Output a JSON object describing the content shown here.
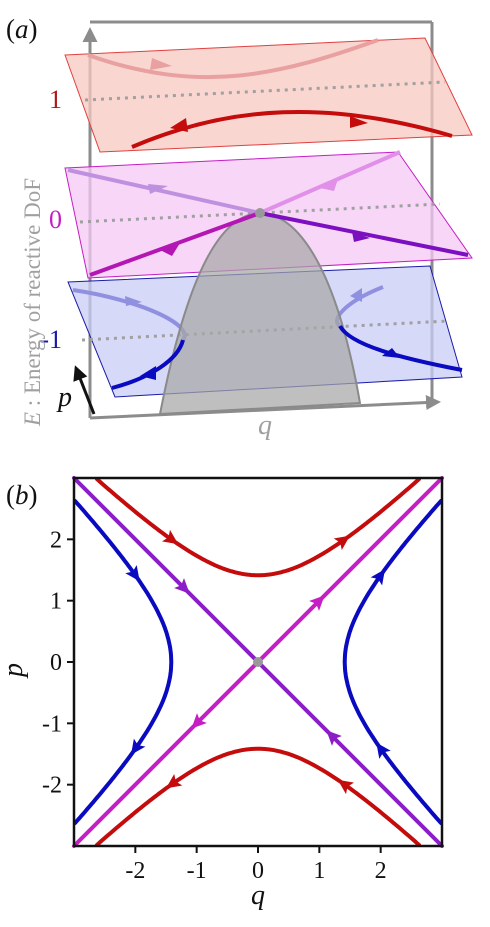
{
  "panel_a": {
    "panel_label": {
      "paren_open": "(",
      "letter": "a",
      "paren_close": ")"
    },
    "y_axis_label": {
      "symbol": "E",
      "rest": " : Energy of reactive DoF"
    },
    "x_axis_label": "q",
    "p_axis_label": "p",
    "levels": [
      {
        "label": "1",
        "color": "#b01818"
      },
      {
        "label": "0",
        "color": "#c41ec4"
      },
      {
        "label": "-1",
        "color": "#1a1aa8"
      }
    ],
    "colors": {
      "box": "#8c8c8c",
      "barrier": "#a6a6a6"
    }
  },
  "panel_b": {
    "panel_label": {
      "paren_open": "(",
      "letter": "b",
      "paren_close": ")"
    },
    "chart_data": {
      "type": "line",
      "xlabel": "q",
      "ylabel": "p",
      "xlim": [
        -3,
        3
      ],
      "ylim": [
        -3,
        3
      ],
      "xticks": [
        "-2",
        "-1",
        "0",
        "1",
        "2"
      ],
      "yticks": [
        "-2",
        "-1",
        "0",
        "1",
        "2"
      ],
      "grid": false,
      "series": [
        {
          "energy": 1,
          "color": "#c40c0c",
          "curves": [
            "p = +sqrt(q^2+2)",
            "p = -sqrt(q^2+2)"
          ]
        },
        {
          "energy": 0,
          "color": "#c41ec4",
          "curves": [
            "p = q"
          ]
        },
        {
          "energy": 0,
          "color": "#8c1ec8",
          "curves": [
            "p = -q"
          ]
        },
        {
          "energy": -1,
          "color": "#0a0ac0",
          "curves": [
            "q = +sqrt(p^2+2)",
            "q = -sqrt(p^2+2)"
          ]
        }
      ],
      "saddle_point": {
        "q": 0,
        "p": 0,
        "color": "#999999"
      }
    }
  }
}
